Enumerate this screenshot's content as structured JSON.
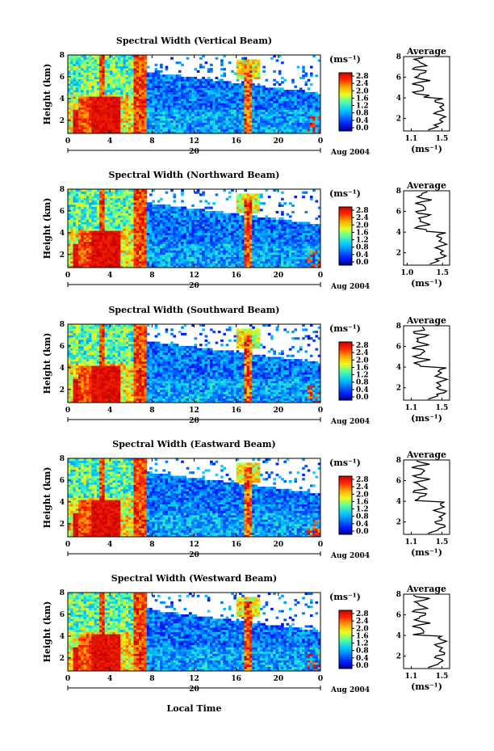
{
  "figure": {
    "ylabel": "Height (km)",
    "date_label": "Aug 2004",
    "day_label": "20",
    "bottom_xlabel": "Local Time",
    "colorbar_unit": "(ms⁻¹)",
    "avg_title": "Average",
    "avg_xlabel": "(ms⁻¹)"
  },
  "colorbar_ticks": [
    "2.8",
    "2.4",
    "2.0",
    "1.6",
    "1.2",
    "0.8",
    "0.4",
    "0.0"
  ],
  "time_ticks": [
    "0",
    "4",
    "8",
    "12",
    "16",
    "20",
    "0"
  ],
  "height_ticks": [
    "2",
    "4",
    "6",
    "8"
  ],
  "chart_data": [
    {
      "type": "heatmap",
      "title": "Spectral Width (Vertical Beam)",
      "xlabel": "",
      "ylabel": "Height (km)",
      "xlim": [
        0,
        24
      ],
      "ylim": [
        0.8,
        8
      ],
      "zlim": [
        0,
        3.0
      ],
      "avg_profile": {
        "title": "Average",
        "xlabel": "(ms⁻¹)",
        "xticks": [
          "1.1",
          "1.5"
        ],
        "xlim": [
          1.0,
          1.6
        ],
        "ylim": [
          0.8,
          8
        ]
      }
    },
    {
      "type": "heatmap",
      "title": "Spectral Width (Northward Beam)",
      "xlabel": "",
      "ylabel": "Height (km)",
      "xlim": [
        0,
        24
      ],
      "ylim": [
        0.8,
        8
      ],
      "zlim": [
        0,
        3.0
      ],
      "avg_profile": {
        "title": "Average",
        "xlabel": "(ms⁻¹)",
        "xticks": [
          "1.0",
          "1.5"
        ],
        "xlim": [
          0.95,
          1.6
        ],
        "ylim": [
          0.8,
          8
        ]
      }
    },
    {
      "type": "heatmap",
      "title": "Spectral Width (Southward Beam)",
      "xlabel": "",
      "ylabel": "Height (km)",
      "xlim": [
        0,
        24
      ],
      "ylim": [
        0.8,
        8
      ],
      "zlim": [
        0,
        3.0
      ],
      "avg_profile": {
        "title": "Average",
        "xlabel": "(ms⁻¹)",
        "xticks": [
          "1.1",
          "1.5"
        ],
        "xlim": [
          1.0,
          1.6
        ],
        "ylim": [
          0.8,
          8
        ]
      }
    },
    {
      "type": "heatmap",
      "title": "Spectral Width (Eastward Beam)",
      "xlabel": "",
      "ylabel": "Height (km)",
      "xlim": [
        0,
        24
      ],
      "ylim": [
        0.8,
        8
      ],
      "zlim": [
        0,
        3.0
      ],
      "avg_profile": {
        "title": "Average",
        "xlabel": "(ms⁻¹)",
        "xticks": [
          "1.1",
          "1.5"
        ],
        "xlim": [
          1.0,
          1.6
        ],
        "ylim": [
          0.8,
          8
        ]
      }
    },
    {
      "type": "heatmap",
      "title": "Spectral Width (Westward Beam)",
      "xlabel": "",
      "ylabel": "Height (km)",
      "xlim": [
        0,
        24
      ],
      "ylim": [
        0.8,
        8
      ],
      "zlim": [
        0,
        3.0
      ],
      "avg_profile": {
        "title": "Average",
        "xlabel": "(ms⁻¹)",
        "xticks": [
          "1.1",
          "1.5"
        ],
        "xlim": [
          1.0,
          1.6
        ],
        "ylim": [
          0.8,
          8
        ]
      }
    }
  ]
}
